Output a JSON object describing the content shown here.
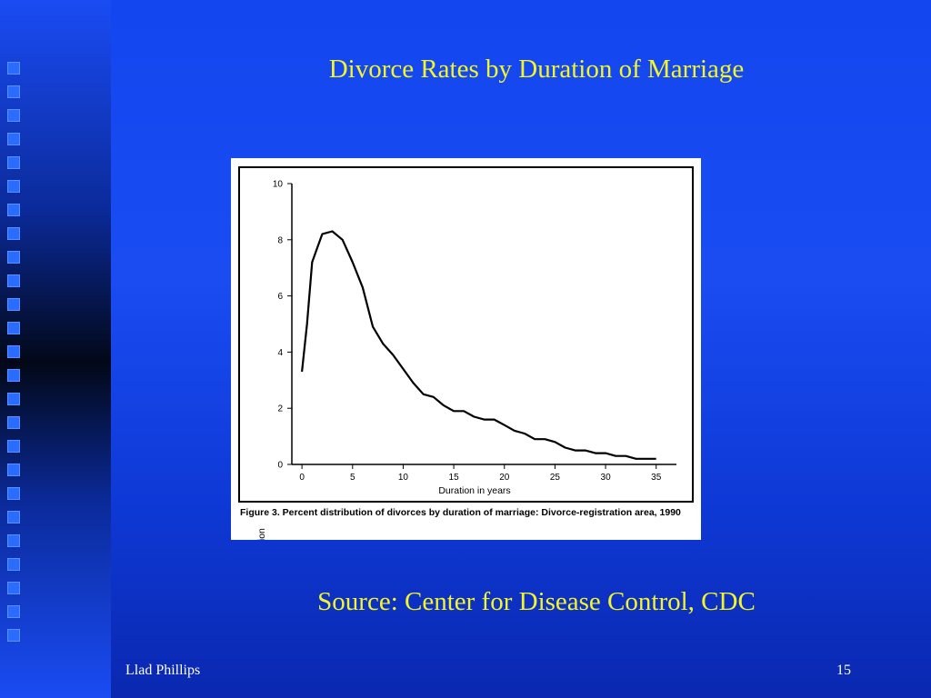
{
  "slide": {
    "title": "Divorce Rates by Duration of Marriage",
    "source": "Source: Center for Disease Control, CDC",
    "footer_author": "Llad Phillips",
    "page_number": "15"
  },
  "figure": {
    "caption": "Figure 3. Percent distribution of divorces by duration of marriage: Divorce-registration area, 1990"
  },
  "colors": {
    "background": "#1446f0",
    "title_text": "#f2f52a",
    "footer_text": "#ffffff",
    "chart_line": "#000000"
  },
  "chart_data": {
    "type": "line",
    "title": "",
    "xlabel": "Duration in years",
    "ylabel": "Percent distribution",
    "xlim": [
      -1,
      37
    ],
    "ylim": [
      0,
      10
    ],
    "xticks": [
      0,
      5,
      10,
      15,
      20,
      25,
      30,
      35
    ],
    "yticks": [
      0,
      2,
      4,
      6,
      8,
      10
    ],
    "grid": false,
    "series": [
      {
        "x": [
          0,
          0.5,
          1,
          1.5,
          2,
          3,
          4,
          5,
          6,
          7,
          8,
          9,
          10,
          11,
          12,
          13,
          14,
          15,
          16,
          17,
          18,
          19,
          20,
          21,
          22,
          23,
          24,
          25,
          26,
          27,
          28,
          29,
          30,
          31,
          32,
          33,
          34,
          35
        ],
        "y": [
          3.3,
          5.0,
          7.2,
          7.7,
          8.2,
          8.3,
          8.0,
          7.2,
          6.3,
          4.9,
          4.3,
          3.9,
          3.4,
          2.9,
          2.5,
          2.4,
          2.1,
          1.9,
          1.9,
          1.7,
          1.6,
          1.6,
          1.4,
          1.2,
          1.1,
          0.9,
          0.9,
          0.8,
          0.6,
          0.5,
          0.5,
          0.4,
          0.4,
          0.3,
          0.3,
          0.2,
          0.2,
          0.2
        ]
      }
    ]
  }
}
